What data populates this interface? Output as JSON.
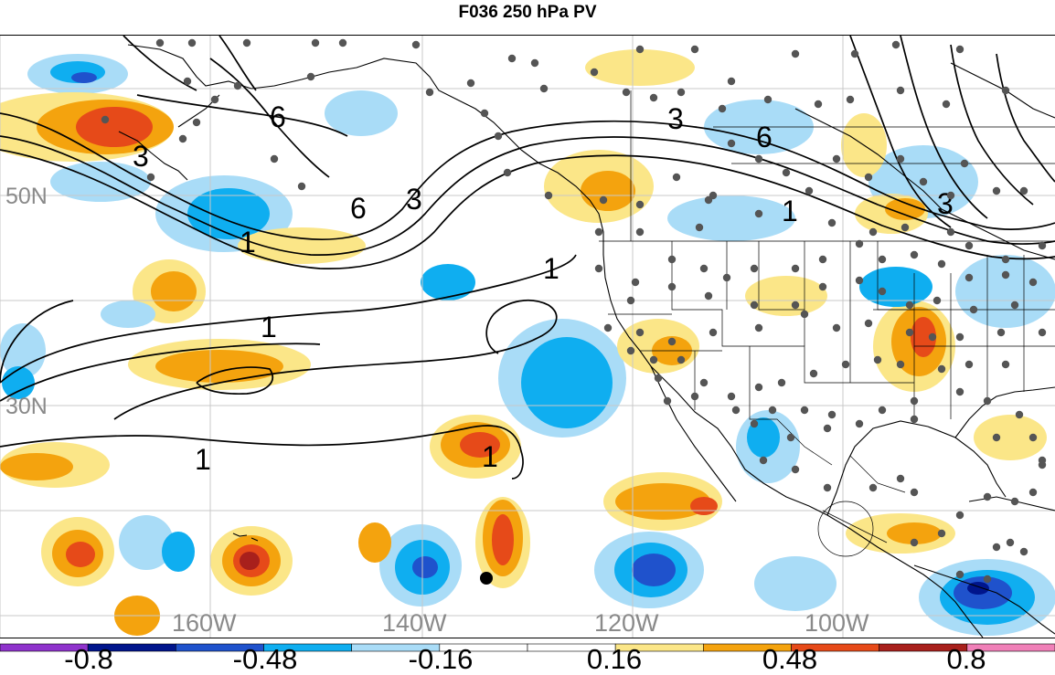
{
  "title": "F036 250 hPa PV",
  "lat_labels": [
    "50N",
    "30N"
  ],
  "lon_labels": [
    "160W",
    "140W",
    "120W",
    "100W"
  ],
  "contour_labels": [
    "6",
    "3",
    "1",
    "6",
    "3",
    "1",
    "3",
    "6",
    "1",
    "3",
    "1",
    "1",
    "1"
  ],
  "colorbar": {
    "colors": [
      "#8f33cc",
      "#00158c",
      "#1f52cc",
      "#0faef0",
      "#a9dcf7",
      "#ffffff",
      "#ffffff",
      "#fbe688",
      "#f4a30e",
      "#e64a19",
      "#a8201c",
      "#f080b8"
    ],
    "tick_labels": [
      "-0.8",
      "-0.48",
      "-0.16",
      "0.16",
      "0.48",
      "0.8"
    ]
  },
  "colors": {
    "blue_light": "#a9dcf7",
    "blue_mid": "#0faef0",
    "blue_dark": "#1f52cc",
    "navy": "#00158c",
    "yellow": "#fbe688",
    "orange": "#f4a30e",
    "red_orange": "#e64a19",
    "dark_red": "#a8201c",
    "contour": "#000000",
    "station_dot": "#555555"
  }
}
